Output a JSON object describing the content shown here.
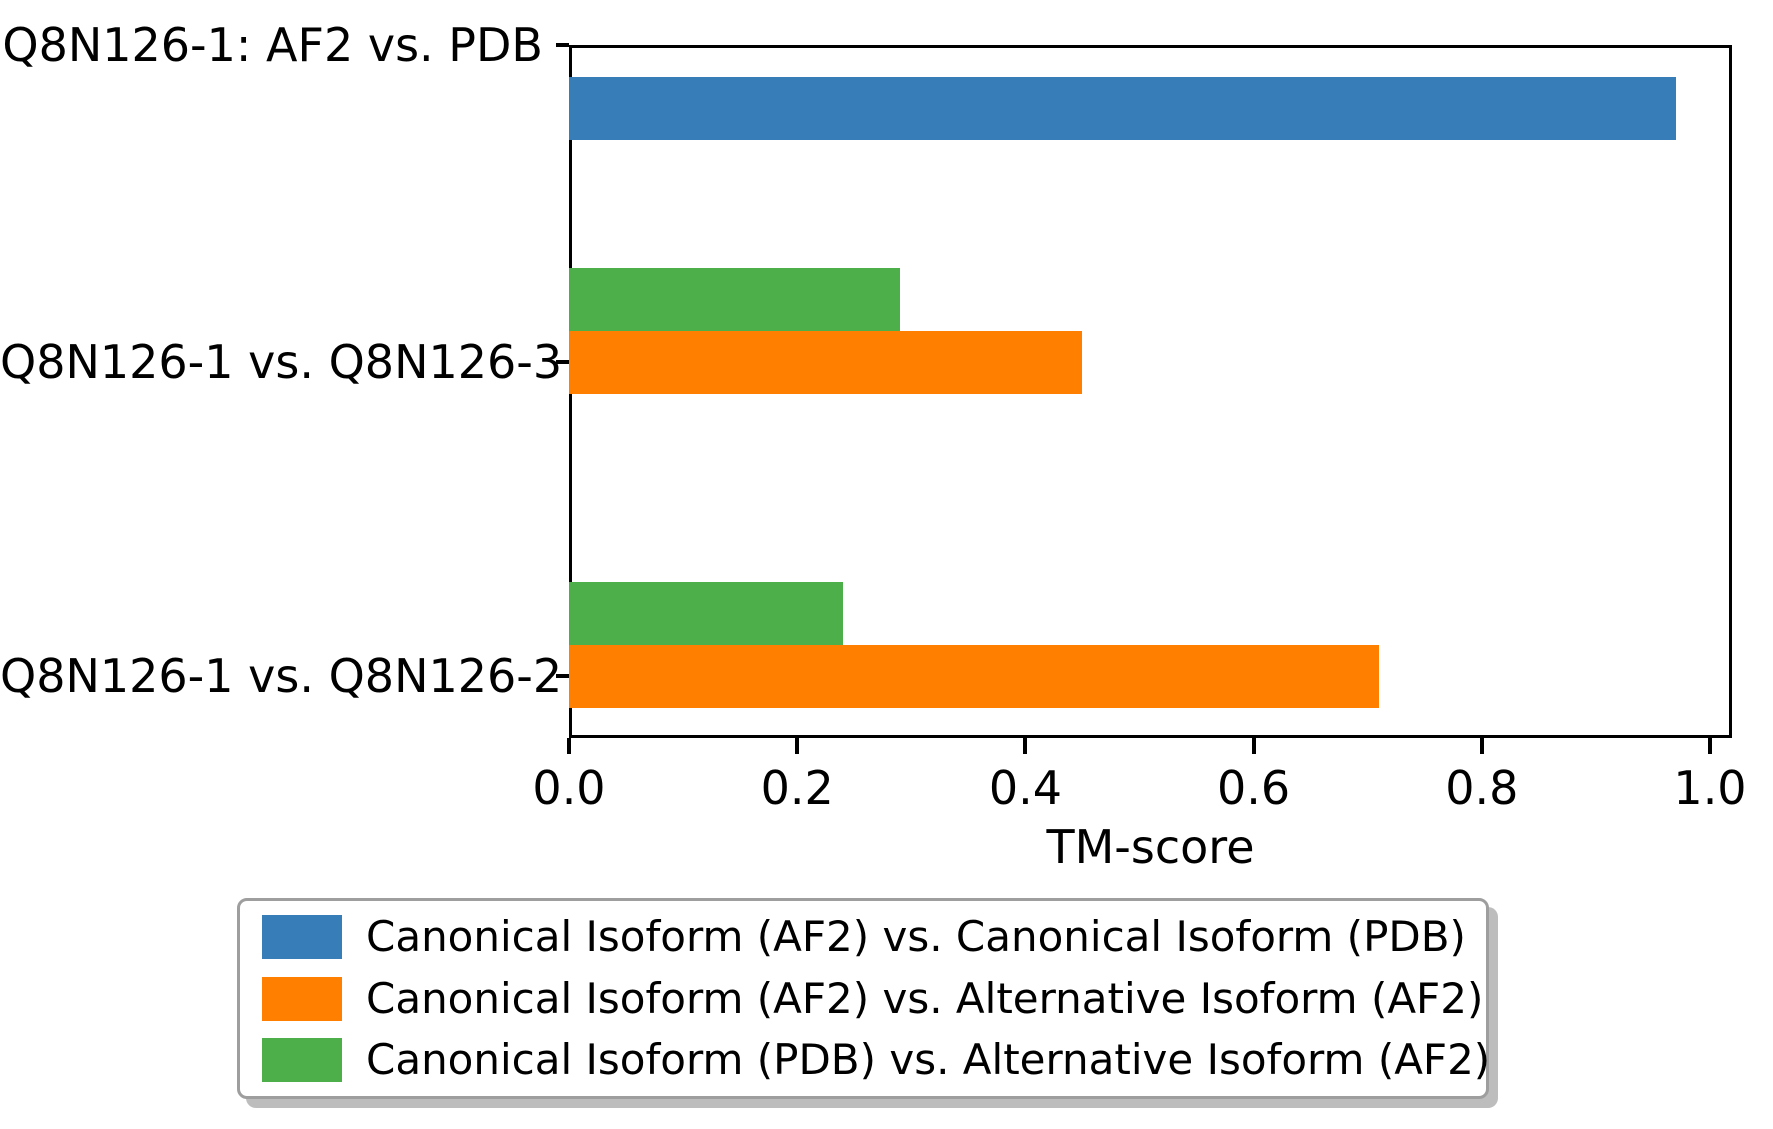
{
  "chart_data": {
    "type": "bar",
    "orientation": "horizontal",
    "title": "",
    "xlabel": "TM-score",
    "ylabel": "",
    "categories": [
      "Q8N126-1: AF2 vs. PDB",
      "Q8N126-1 vs. Q8N126-3",
      "Q8N126-1 vs. Q8N126-2"
    ],
    "series": [
      {
        "name": "Canonical Isoform (AF2) vs. Canonical Isoform (PDB)",
        "color": "#377eb8",
        "values": [
          0.97,
          null,
          null
        ]
      },
      {
        "name": "Canonical Isoform (AF2) vs. Alternative Isoform (AF2)",
        "color": "#ff7f00",
        "values": [
          null,
          0.45,
          0.71
        ]
      },
      {
        "name": "Canonical Isoform (PDB) vs. Alternative Isoform (AF2)",
        "color": "#4daf4a",
        "values": [
          null,
          0.29,
          0.24
        ]
      }
    ],
    "xlim": [
      0.0,
      1.02
    ],
    "xticks": [
      0.0,
      0.2,
      0.4,
      0.6,
      0.8,
      1.0
    ],
    "xtick_labels": [
      "0.0",
      "0.2",
      "0.4",
      "0.6",
      "0.8",
      "1.0"
    ],
    "grid": false,
    "legend_position": "bottom",
    "background_color": "#ffffff",
    "axis_color": "#000000",
    "text_color": "#000000"
  }
}
